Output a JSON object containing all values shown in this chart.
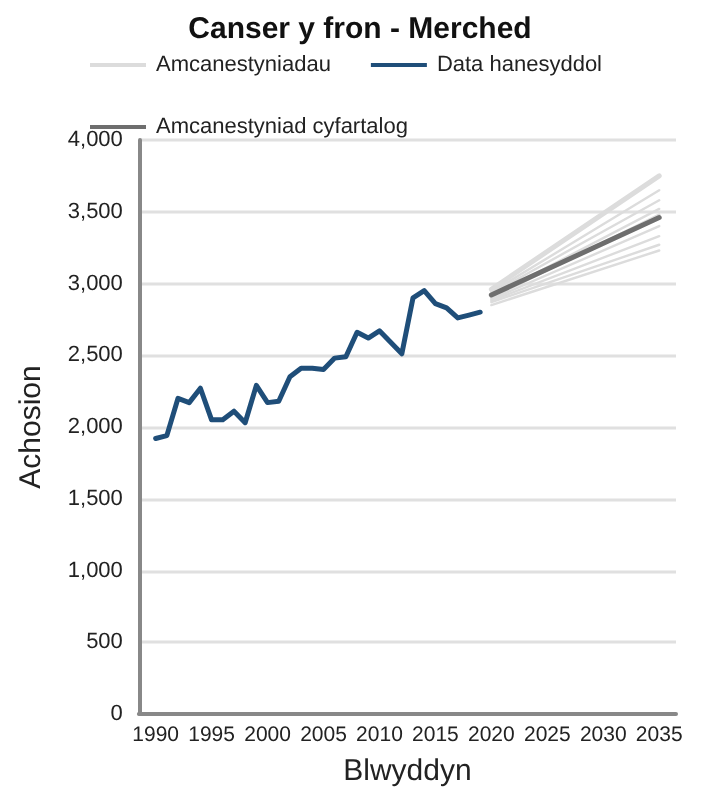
{
  "chart_data": {
    "type": "line",
    "title": "Canser y fron - Merched",
    "xlabel": "Blwyddyn",
    "ylabel": "Achosion",
    "xlim": [
      1988.5,
      2036.5
    ],
    "xticks": [
      1990,
      1995,
      2000,
      2005,
      2010,
      2015,
      2020,
      2025,
      2030,
      2035
    ],
    "ylim": [
      0,
      4000
    ],
    "yticks": [
      0,
      {
        "value": 500,
        "label": "500"
      },
      {
        "value": 1000,
        "label": "1,000"
      },
      {
        "value": 1500,
        "label": "1,500"
      },
      {
        "value": 2000,
        "label": "2,000"
      },
      {
        "value": 2500,
        "label": "2,500"
      },
      {
        "value": 3000,
        "label": "3,000"
      },
      {
        "value": 3500,
        "label": "3,500"
      },
      {
        "value": 4000,
        "label": "4,000"
      }
    ],
    "grid": "y",
    "legend": "top",
    "marker": "none",
    "line_style": "solid",
    "series": [
      {
        "name": "Amcanestyniadau",
        "color": "#dcdcdc",
        "x": [
          2020,
          2035
        ],
        "values": [
          2960,
          3750
        ]
      },
      {
        "color": "#dcdcdc",
        "x": [
          2020,
          2035
        ],
        "values": [
          2940,
          3650
        ]
      },
      {
        "color": "#dcdcdc",
        "x": [
          2020,
          2035
        ],
        "values": [
          2930,
          3580
        ]
      },
      {
        "color": "#dcdcdc",
        "x": [
          2020,
          2035
        ],
        "values": [
          2910,
          3520
        ]
      },
      {
        "color": "#dcdcdc",
        "x": [
          2020,
          2035
        ],
        "values": [
          2900,
          3480
        ]
      },
      {
        "color": "#dcdcdc",
        "x": [
          2020,
          2035
        ],
        "values": [
          2890,
          3400
        ]
      },
      {
        "color": "#dcdcdc",
        "x": [
          2020,
          2035
        ],
        "values": [
          2880,
          3330
        ]
      },
      {
        "color": "#dcdcdc",
        "x": [
          2020,
          2035
        ],
        "values": [
          2870,
          3270
        ]
      },
      {
        "color": "#dcdcdc",
        "x": [
          2020,
          2035
        ],
        "values": [
          2850,
          3230
        ]
      },
      {
        "name": "Data hanesyddol",
        "color": "#1f4e79",
        "x": [
          1990,
          1991,
          1992,
          1993,
          1994,
          1995,
          1996,
          1997,
          1998,
          1999,
          2000,
          2001,
          2002,
          2003,
          2004,
          2005,
          2006,
          2007,
          2008,
          2009,
          2010,
          2011,
          2012,
          2013,
          2014,
          2015,
          2016,
          2017,
          2018,
          2019
        ],
        "values": [
          1920,
          1940,
          2200,
          2170,
          2270,
          2050,
          2050,
          2110,
          2030,
          2290,
          2170,
          2180,
          2350,
          2410,
          2410,
          2400,
          2480,
          2490,
          2660,
          2620,
          2670,
          2590,
          2510,
          2900,
          2950,
          2860,
          2830,
          2760,
          2780,
          2800
        ]
      },
      {
        "name": "Amcanestyniad cyfartalog",
        "color": "#6e6e6e",
        "x": [
          2020,
          2035
        ],
        "values": [
          2920,
          3460
        ]
      }
    ]
  }
}
